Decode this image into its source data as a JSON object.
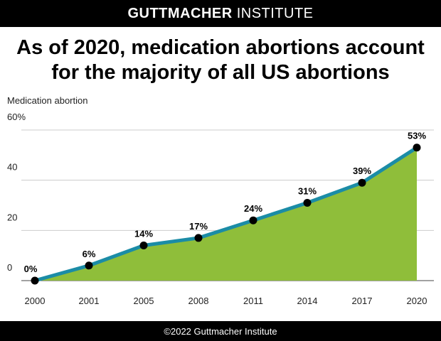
{
  "header": {
    "brand_bold": "GUTTMACHER",
    "brand_light": "INSTITUTE",
    "title_line1": "As of 2020, medication abortions account",
    "title_line2": "for the majority of all US abortions"
  },
  "footer": {
    "copyright": "©2022 Guttmacher Institute"
  },
  "colors": {
    "area_fill": "#8fbe3a",
    "line": "#1b8ca6",
    "marker": "#000000",
    "grid": "#cccccc"
  },
  "chart_data": {
    "type": "area",
    "title": "As of 2020, medication abortions account for the majority of all US abortions",
    "ylabel": "Medication abortion",
    "xlabel": "",
    "categories": [
      "2000",
      "2001",
      "2005",
      "2008",
      "2011",
      "2014",
      "2017",
      "2020"
    ],
    "values": [
      0,
      6,
      14,
      17,
      24,
      31,
      39,
      53
    ],
    "data_labels": [
      "0%",
      "6%",
      "14%",
      "17%",
      "24%",
      "31%",
      "39%",
      "53%"
    ],
    "y_ticks": [
      "0",
      "20",
      "40",
      "60%"
    ],
    "y_tick_values": [
      0,
      20,
      40,
      60
    ],
    "ylim": [
      0,
      60
    ],
    "grid": true,
    "legend": "none"
  }
}
